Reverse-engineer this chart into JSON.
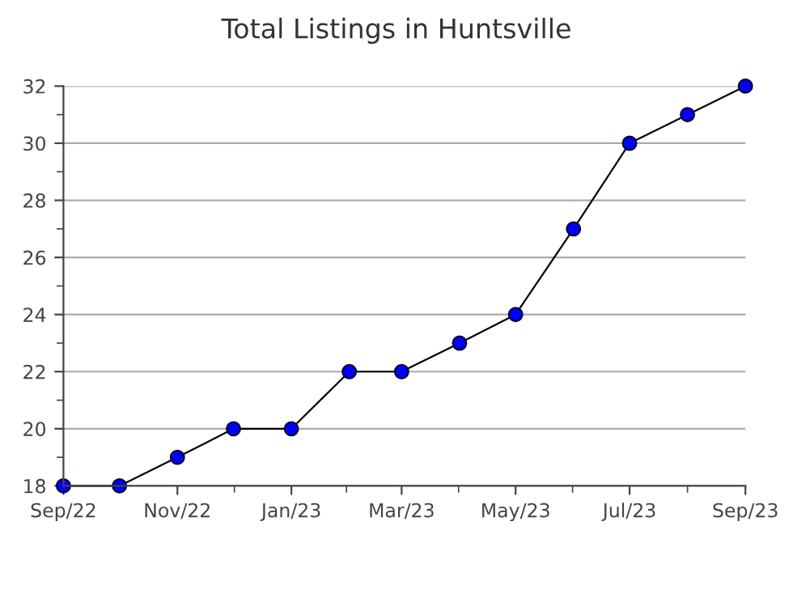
{
  "chart_data": {
    "type": "line",
    "title": "Total Listings in Huntsville",
    "x": [
      "2022-09",
      "2022-10",
      "2022-11",
      "2022-12",
      "2023-01",
      "2023-02",
      "2023-03",
      "2023-04",
      "2023-05",
      "2023-06",
      "2023-07",
      "2023-08",
      "2023-09"
    ],
    "series": [
      {
        "color": "#0000ff",
        "values": [
          18,
          18,
          19,
          20,
          20,
          22,
          22,
          23,
          24,
          27,
          30,
          31,
          32
        ]
      }
    ],
    "xlim": [
      "2022-09",
      "2023-09"
    ],
    "xticks": [
      {
        "value": "2022-09",
        "label": "Sep/22"
      },
      {
        "value": "2022-11",
        "label": "Nov/22"
      },
      {
        "value": "2023-01",
        "label": "Jan/23"
      },
      {
        "value": "2023-03",
        "label": "Mar/23"
      },
      {
        "value": "2023-05",
        "label": "May/23"
      },
      {
        "value": "2023-07",
        "label": "Jul/23"
      },
      {
        "value": "2023-09",
        "label": "Sep/23"
      }
    ],
    "ylim": [
      18,
      32
    ],
    "yticks": [
      18,
      20,
      22,
      24,
      26,
      28,
      30,
      32
    ],
    "grid": "y",
    "marker": "circle",
    "line_style": "solid",
    "legend": false
  }
}
